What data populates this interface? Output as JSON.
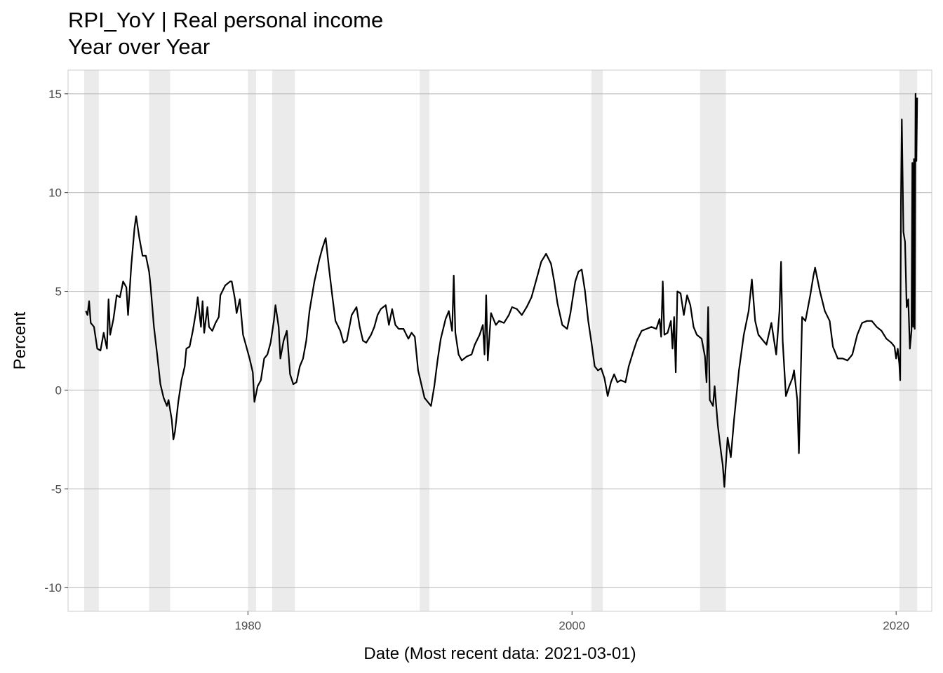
{
  "title": "RPI_YoY | Real personal income",
  "subtitle": "Year over Year",
  "chart_data": {
    "type": "line",
    "xlabel": "Date (Most recent data: 2021-03-01)",
    "ylabel": "Percent",
    "xlim": [
      1968.9,
      2022.2
    ],
    "ylim": [
      -11.2,
      16.2
    ],
    "x_ticks": [
      1980,
      2000,
      2020
    ],
    "x_tick_labels": [
      "1980",
      "2000",
      "2020"
    ],
    "y_ticks": [
      -10,
      -5,
      0,
      5,
      10,
      15
    ],
    "y_tick_labels": [
      "-10",
      "-5",
      "0",
      "5",
      "10",
      "15"
    ],
    "grid": true,
    "legend": "none",
    "line_color": "#000000",
    "band_color": "#ebebeb",
    "recession_bands": [
      [
        1969.9,
        1970.8
      ],
      [
        1973.9,
        1975.2
      ],
      [
        1980.0,
        1980.5
      ],
      [
        1981.5,
        1982.9
      ],
      [
        1990.6,
        1991.2
      ],
      [
        2001.2,
        2001.9
      ],
      [
        2007.9,
        2009.5
      ],
      [
        2020.2,
        2021.3
      ]
    ],
    "series": [
      {
        "points": [
          [
            1970.0,
            4.0
          ],
          [
            1970.1,
            3.8
          ],
          [
            1970.2,
            4.5
          ],
          [
            1970.3,
            3.4
          ],
          [
            1970.5,
            3.2
          ],
          [
            1970.7,
            2.1
          ],
          [
            1970.9,
            2.0
          ],
          [
            1971.1,
            2.9
          ],
          [
            1971.3,
            2.1
          ],
          [
            1971.4,
            4.6
          ],
          [
            1971.5,
            2.8
          ],
          [
            1971.7,
            3.6
          ],
          [
            1971.9,
            4.8
          ],
          [
            1972.1,
            4.7
          ],
          [
            1972.3,
            5.5
          ],
          [
            1972.5,
            5.2
          ],
          [
            1972.6,
            3.8
          ],
          [
            1972.8,
            6.3
          ],
          [
            1973.0,
            8.2
          ],
          [
            1973.1,
            8.8
          ],
          [
            1973.3,
            7.7
          ],
          [
            1973.5,
            6.8
          ],
          [
            1973.7,
            6.8
          ],
          [
            1973.9,
            6.0
          ],
          [
            1974.0,
            5.2
          ],
          [
            1974.2,
            3.2
          ],
          [
            1974.4,
            1.8
          ],
          [
            1974.6,
            0.3
          ],
          [
            1974.8,
            -0.4
          ],
          [
            1975.0,
            -0.8
          ],
          [
            1975.1,
            -0.5
          ],
          [
            1975.3,
            -1.5
          ],
          [
            1975.4,
            -2.5
          ],
          [
            1975.5,
            -2.1
          ],
          [
            1975.7,
            -0.6
          ],
          [
            1975.9,
            0.5
          ],
          [
            1976.1,
            1.2
          ],
          [
            1976.2,
            2.1
          ],
          [
            1976.4,
            2.2
          ],
          [
            1976.6,
            3.0
          ],
          [
            1976.8,
            4.0
          ],
          [
            1976.9,
            4.7
          ],
          [
            1977.1,
            3.2
          ],
          [
            1977.2,
            4.5
          ],
          [
            1977.3,
            2.9
          ],
          [
            1977.5,
            4.2
          ],
          [
            1977.6,
            3.2
          ],
          [
            1977.8,
            3.0
          ],
          [
            1978.0,
            3.4
          ],
          [
            1978.2,
            3.7
          ],
          [
            1978.3,
            4.8
          ],
          [
            1978.6,
            5.3
          ],
          [
            1978.9,
            5.5
          ],
          [
            1979.0,
            5.5
          ],
          [
            1979.2,
            4.6
          ],
          [
            1979.3,
            3.9
          ],
          [
            1979.5,
            4.6
          ],
          [
            1979.7,
            2.8
          ],
          [
            1979.9,
            2.2
          ],
          [
            1980.1,
            1.6
          ],
          [
            1980.3,
            0.9
          ],
          [
            1980.4,
            -0.6
          ],
          [
            1980.6,
            0.2
          ],
          [
            1980.8,
            0.5
          ],
          [
            1981.0,
            1.6
          ],
          [
            1981.2,
            1.8
          ],
          [
            1981.4,
            2.4
          ],
          [
            1981.6,
            3.5
          ],
          [
            1981.7,
            4.3
          ],
          [
            1981.9,
            3.2
          ],
          [
            1982.0,
            1.6
          ],
          [
            1982.2,
            2.5
          ],
          [
            1982.4,
            3.0
          ],
          [
            1982.6,
            0.8
          ],
          [
            1982.8,
            0.3
          ],
          [
            1983.0,
            0.4
          ],
          [
            1983.2,
            1.2
          ],
          [
            1983.4,
            1.6
          ],
          [
            1983.6,
            2.5
          ],
          [
            1983.8,
            4.0
          ],
          [
            1984.1,
            5.5
          ],
          [
            1984.4,
            6.6
          ],
          [
            1984.6,
            7.2
          ],
          [
            1984.8,
            7.7
          ],
          [
            1985.0,
            6.2
          ],
          [
            1985.2,
            4.8
          ],
          [
            1985.4,
            3.5
          ],
          [
            1985.7,
            3.0
          ],
          [
            1985.9,
            2.4
          ],
          [
            1986.1,
            2.5
          ],
          [
            1986.4,
            3.8
          ],
          [
            1986.7,
            4.2
          ],
          [
            1986.9,
            3.2
          ],
          [
            1987.1,
            2.5
          ],
          [
            1987.3,
            2.4
          ],
          [
            1987.6,
            2.8
          ],
          [
            1987.8,
            3.2
          ],
          [
            1988.0,
            3.8
          ],
          [
            1988.2,
            4.1
          ],
          [
            1988.5,
            4.3
          ],
          [
            1988.7,
            3.3
          ],
          [
            1988.9,
            4.1
          ],
          [
            1989.1,
            3.3
          ],
          [
            1989.3,
            3.1
          ],
          [
            1989.6,
            3.1
          ],
          [
            1989.9,
            2.6
          ],
          [
            1990.1,
            2.9
          ],
          [
            1990.3,
            2.7
          ],
          [
            1990.5,
            1.0
          ],
          [
            1990.7,
            0.3
          ],
          [
            1990.9,
            -0.4
          ],
          [
            1991.1,
            -0.6
          ],
          [
            1991.3,
            -0.8
          ],
          [
            1991.5,
            0.2
          ],
          [
            1991.7,
            1.5
          ],
          [
            1991.9,
            2.6
          ],
          [
            1992.2,
            3.6
          ],
          [
            1992.4,
            4.0
          ],
          [
            1992.6,
            3.0
          ],
          [
            1992.7,
            5.8
          ],
          [
            1992.8,
            2.9
          ],
          [
            1993.0,
            1.8
          ],
          [
            1993.2,
            1.5
          ],
          [
            1993.5,
            1.7
          ],
          [
            1993.8,
            1.8
          ],
          [
            1994.0,
            2.3
          ],
          [
            1994.3,
            2.8
          ],
          [
            1994.5,
            3.3
          ],
          [
            1994.6,
            1.8
          ],
          [
            1994.7,
            4.8
          ],
          [
            1994.8,
            1.5
          ],
          [
            1995.0,
            3.9
          ],
          [
            1995.3,
            3.3
          ],
          [
            1995.5,
            3.5
          ],
          [
            1995.8,
            3.4
          ],
          [
            1996.1,
            3.8
          ],
          [
            1996.3,
            4.2
          ],
          [
            1996.6,
            4.1
          ],
          [
            1996.9,
            3.8
          ],
          [
            1997.2,
            4.2
          ],
          [
            1997.5,
            4.7
          ],
          [
            1997.8,
            5.6
          ],
          [
            1998.1,
            6.5
          ],
          [
            1998.4,
            6.9
          ],
          [
            1998.7,
            6.4
          ],
          [
            1998.9,
            5.5
          ],
          [
            1999.1,
            4.4
          ],
          [
            1999.4,
            3.3
          ],
          [
            1999.7,
            3.1
          ],
          [
            1999.9,
            3.9
          ],
          [
            2000.2,
            5.5
          ],
          [
            2000.4,
            6.0
          ],
          [
            2000.6,
            6.1
          ],
          [
            2000.8,
            5.0
          ],
          [
            2001.0,
            3.5
          ],
          [
            2001.2,
            2.4
          ],
          [
            2001.4,
            1.2
          ],
          [
            2001.6,
            1.0
          ],
          [
            2001.8,
            1.1
          ],
          [
            2002.0,
            0.6
          ],
          [
            2002.2,
            -0.3
          ],
          [
            2002.4,
            0.4
          ],
          [
            2002.6,
            0.8
          ],
          [
            2002.8,
            0.4
          ],
          [
            2003.0,
            0.5
          ],
          [
            2003.3,
            0.4
          ],
          [
            2003.5,
            1.2
          ],
          [
            2003.8,
            2.0
          ],
          [
            2004.0,
            2.5
          ],
          [
            2004.3,
            3.0
          ],
          [
            2004.6,
            3.1
          ],
          [
            2004.9,
            3.2
          ],
          [
            2005.2,
            3.1
          ],
          [
            2005.4,
            3.6
          ],
          [
            2005.5,
            2.7
          ],
          [
            2005.6,
            5.5
          ],
          [
            2005.7,
            2.8
          ],
          [
            2005.9,
            2.9
          ],
          [
            2006.1,
            3.5
          ],
          [
            2006.2,
            2.1
          ],
          [
            2006.3,
            3.7
          ],
          [
            2006.4,
            0.9
          ],
          [
            2006.5,
            5.0
          ],
          [
            2006.7,
            4.9
          ],
          [
            2006.9,
            3.8
          ],
          [
            2007.1,
            4.8
          ],
          [
            2007.3,
            4.3
          ],
          [
            2007.5,
            3.2
          ],
          [
            2007.7,
            2.8
          ],
          [
            2008.0,
            2.6
          ],
          [
            2008.2,
            1.7
          ],
          [
            2008.3,
            0.4
          ],
          [
            2008.4,
            4.2
          ],
          [
            2008.5,
            -0.5
          ],
          [
            2008.7,
            -0.8
          ],
          [
            2008.8,
            0.2
          ],
          [
            2009.0,
            -1.8
          ],
          [
            2009.2,
            -3.2
          ],
          [
            2009.3,
            -3.8
          ],
          [
            2009.4,
            -4.9
          ],
          [
            2009.6,
            -2.4
          ],
          [
            2009.8,
            -3.4
          ],
          [
            2010.0,
            -1.5
          ],
          [
            2010.3,
            1.0
          ],
          [
            2010.6,
            2.8
          ],
          [
            2010.9,
            4.0
          ],
          [
            2011.1,
            5.6
          ],
          [
            2011.3,
            3.5
          ],
          [
            2011.5,
            2.8
          ],
          [
            2011.8,
            2.5
          ],
          [
            2012.0,
            2.3
          ],
          [
            2012.3,
            3.4
          ],
          [
            2012.6,
            1.8
          ],
          [
            2012.8,
            4.0
          ],
          [
            2012.9,
            6.5
          ],
          [
            2013.0,
            2.5
          ],
          [
            2013.2,
            -0.3
          ],
          [
            2013.4,
            0.2
          ],
          [
            2013.6,
            0.6
          ],
          [
            2013.7,
            1.0
          ],
          [
            2013.9,
            -0.5
          ],
          [
            2014.0,
            -3.2
          ],
          [
            2014.2,
            3.7
          ],
          [
            2014.4,
            3.5
          ],
          [
            2014.7,
            4.8
          ],
          [
            2014.9,
            5.8
          ],
          [
            2015.0,
            6.2
          ],
          [
            2015.3,
            5.0
          ],
          [
            2015.6,
            4.0
          ],
          [
            2015.9,
            3.5
          ],
          [
            2016.1,
            2.2
          ],
          [
            2016.4,
            1.6
          ],
          [
            2016.7,
            1.6
          ],
          [
            2017.0,
            1.5
          ],
          [
            2017.3,
            1.8
          ],
          [
            2017.6,
            2.8
          ],
          [
            2017.9,
            3.4
          ],
          [
            2018.2,
            3.5
          ],
          [
            2018.5,
            3.5
          ],
          [
            2018.8,
            3.2
          ],
          [
            2019.1,
            3.0
          ],
          [
            2019.4,
            2.6
          ],
          [
            2019.7,
            2.4
          ],
          [
            2019.9,
            2.2
          ],
          [
            2020.0,
            1.6
          ],
          [
            2020.1,
            2.1
          ],
          [
            2020.2,
            1.3
          ],
          [
            2020.25,
            0.5
          ],
          [
            2020.3,
            9.5
          ],
          [
            2020.35,
            13.7
          ],
          [
            2020.45,
            8.0
          ],
          [
            2020.55,
            7.5
          ],
          [
            2020.65,
            4.2
          ],
          [
            2020.75,
            4.6
          ],
          [
            2020.85,
            2.1
          ],
          [
            2020.95,
            3.0
          ],
          [
            2021.0,
            11.5
          ],
          [
            2021.05,
            3.2
          ],
          [
            2021.1,
            11.7
          ],
          [
            2021.15,
            3.1
          ],
          [
            2021.2,
            15.0
          ],
          [
            2021.25,
            11.6
          ],
          [
            2021.3,
            14.8
          ]
        ]
      }
    ]
  }
}
